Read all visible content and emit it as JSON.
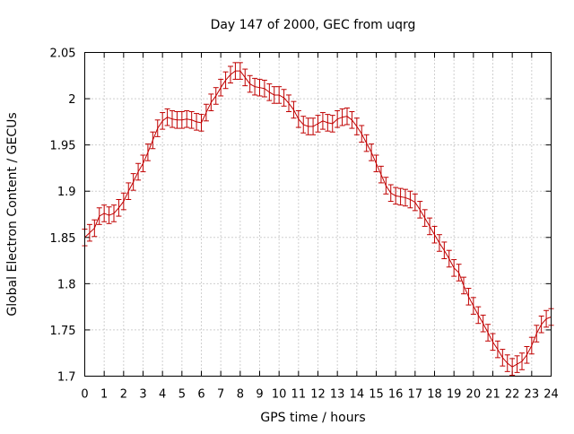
{
  "chart_data": {
    "type": "line",
    "title": "Day 147 of 2000, GEC from uqrg",
    "xlabel": "GPS time / hours",
    "ylabel": "Global Electron Content / GECUs",
    "xlim": [
      0,
      24
    ],
    "ylim": [
      1.7,
      2.05
    ],
    "grid": true,
    "x_ticks": [
      "0",
      "1",
      "2",
      "3",
      "4",
      "5",
      "6",
      "7",
      "8",
      "9",
      "10",
      "11",
      "12",
      "13",
      "14",
      "15",
      "16",
      "17",
      "18",
      "19",
      "20",
      "21",
      "22",
      "23",
      "24"
    ],
    "y_ticks": [
      "1.7",
      "1.75",
      "1.8",
      "1.85",
      "1.9",
      "1.95",
      "2",
      "2.05"
    ],
    "series": [
      {
        "color": "#c00000",
        "error": 0.009,
        "x": [
          0,
          0.25,
          0.5,
          0.75,
          1,
          1.25,
          1.5,
          1.75,
          2,
          2.25,
          2.5,
          2.75,
          3,
          3.25,
          3.5,
          3.75,
          4,
          4.25,
          4.5,
          4.75,
          5,
          5.25,
          5.5,
          5.75,
          6,
          6.25,
          6.5,
          6.75,
          7,
          7.25,
          7.5,
          7.75,
          8,
          8.25,
          8.5,
          8.75,
          9,
          9.25,
          9.5,
          9.75,
          10,
          10.25,
          10.5,
          10.75,
          11,
          11.25,
          11.5,
          11.75,
          12,
          12.25,
          12.5,
          12.75,
          13,
          13.25,
          13.5,
          13.75,
          14,
          14.25,
          14.5,
          14.75,
          15,
          15.25,
          15.5,
          15.75,
          16,
          16.25,
          16.5,
          16.75,
          17,
          17.25,
          17.5,
          17.75,
          18,
          18.25,
          18.5,
          18.75,
          19,
          19.25,
          19.5,
          19.75,
          20,
          20.25,
          20.5,
          20.75,
          21,
          21.25,
          21.5,
          21.75,
          22,
          22.25,
          22.5,
          22.75,
          23,
          23.25,
          23.5,
          23.75,
          24
        ],
        "y": [
          1.85,
          1.855,
          1.86,
          1.873,
          1.876,
          1.874,
          1.876,
          1.882,
          1.889,
          1.9,
          1.91,
          1.921,
          1.93,
          1.942,
          1.955,
          1.968,
          1.976,
          1.98,
          1.978,
          1.977,
          1.977,
          1.978,
          1.977,
          1.975,
          1.974,
          1.985,
          1.996,
          2.003,
          2.012,
          2.02,
          2.026,
          2.03,
          2.03,
          2.023,
          2.016,
          2.013,
          2.012,
          2.011,
          2.007,
          2.004,
          2.004,
          2.001,
          1.995,
          1.988,
          1.978,
          1.972,
          1.97,
          1.97,
          1.973,
          1.976,
          1.974,
          1.973,
          1.978,
          1.98,
          1.981,
          1.977,
          1.97,
          1.962,
          1.952,
          1.942,
          1.93,
          1.918,
          1.906,
          1.898,
          1.895,
          1.894,
          1.893,
          1.891,
          1.888,
          1.88,
          1.871,
          1.862,
          1.853,
          1.844,
          1.836,
          1.827,
          1.817,
          1.812,
          1.798,
          1.786,
          1.776,
          1.766,
          1.757,
          1.747,
          1.737,
          1.729,
          1.72,
          1.714,
          1.71,
          1.713,
          1.716,
          1.723,
          1.733,
          1.746,
          1.756,
          1.762,
          1.764
        ]
      }
    ]
  }
}
